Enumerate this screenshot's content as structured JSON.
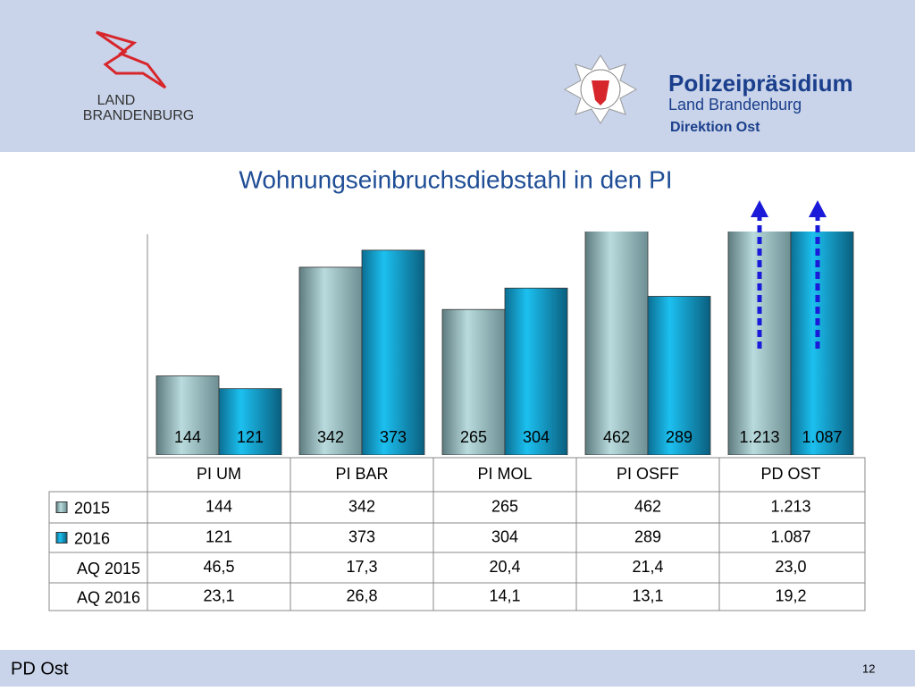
{
  "header": {
    "logo_left": [
      "LAND",
      "BRANDENBURG"
    ],
    "org": "Polizeipräsidium",
    "org_sub": "Land Brandenburg",
    "division": "Direktion Ost"
  },
  "chart_data": {
    "type": "bar",
    "title": "Wohnungseinbruchsdiebstahl in den PI",
    "categories": [
      "PI UM",
      "PI BAR",
      "PI MOL",
      "PI OSFF",
      "PD OST"
    ],
    "series": [
      {
        "name": "2015",
        "color": "#9cc4c8",
        "values": [
          144,
          342,
          265,
          462,
          1213
        ],
        "value_labels": [
          "144",
          "342",
          "265",
          "462",
          "1.213"
        ]
      },
      {
        "name": "2016",
        "color": "#19b7ea",
        "values": [
          121,
          373,
          304,
          289,
          1087
        ],
        "value_labels": [
          "121",
          "373",
          "304",
          "289",
          "1.087"
        ]
      }
    ],
    "table_rows": [
      {
        "name": "AQ 2015",
        "values": [
          "46,5",
          "17,3",
          "20,4",
          "21,4",
          "23,0"
        ]
      },
      {
        "name": "AQ 2016",
        "values": [
          "23,1",
          "26,8",
          "14,1",
          "13,1",
          "19,2"
        ]
      }
    ],
    "ylim": [
      0,
      407
    ]
  },
  "footer": {
    "label": "PD Ost",
    "page": "12"
  }
}
